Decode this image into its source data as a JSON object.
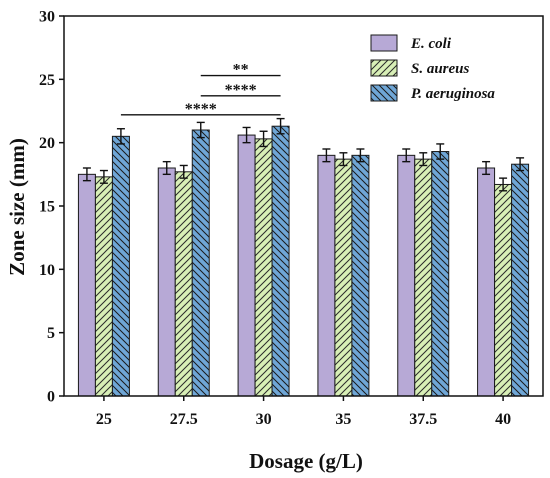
{
  "chart_data": {
    "type": "bar",
    "title": "",
    "xlabel": "Dosage (g/L)",
    "ylabel": "Zone size (mm)",
    "ylim": [
      0,
      30
    ],
    "yticks": [
      0,
      5,
      10,
      15,
      20,
      25,
      30
    ],
    "categories": [
      "25",
      "27.5",
      "30",
      "35",
      "37.5",
      "40"
    ],
    "legend_position": "top-right",
    "series": [
      {
        "name": "E. coli",
        "color": "#b7a9d6",
        "pattern": "solid",
        "values": [
          17.5,
          18.0,
          20.6,
          19.0,
          19.0,
          18.0
        ],
        "errors": [
          0.5,
          0.5,
          0.6,
          0.5,
          0.5,
          0.5
        ]
      },
      {
        "name": "S. aureus",
        "color": "#d8efb6",
        "pattern": "hatch-forward",
        "values": [
          17.3,
          17.7,
          20.3,
          18.7,
          18.7,
          16.7
        ],
        "errors": [
          0.5,
          0.5,
          0.6,
          0.5,
          0.5,
          0.5
        ]
      },
      {
        "name": "P. aeruginosa",
        "color": "#6fa6d6",
        "pattern": "hatch-back",
        "values": [
          20.5,
          21.0,
          21.3,
          19.0,
          19.3,
          18.3
        ],
        "errors": [
          0.6,
          0.6,
          0.6,
          0.5,
          0.6,
          0.5
        ]
      }
    ],
    "significance": [
      {
        "label": "**",
        "from_category": "27.5",
        "to_category": "30",
        "y": 25.3
      },
      {
        "label": "****",
        "from_category": "27.5",
        "to_category": "30",
        "y": 23.7
      },
      {
        "label": "****",
        "from_category": "25",
        "to_category": "30",
        "y": 22.2
      }
    ]
  }
}
